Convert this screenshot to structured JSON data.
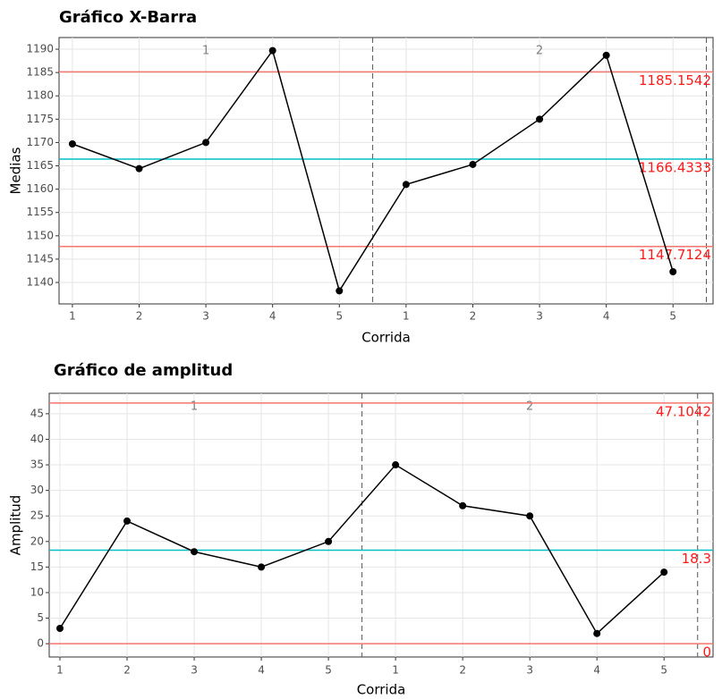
{
  "chart_data": [
    {
      "type": "line",
      "title": "Gráfico X-Barra",
      "x_label": "Corrida",
      "y_label": "Medias",
      "categories": [
        "1",
        "2",
        "3",
        "4",
        "5",
        "1",
        "2",
        "3",
        "4",
        "5"
      ],
      "phases": [
        "1",
        "2"
      ],
      "series": [
        {
          "name": "Medias",
          "color": "#000000",
          "values": [
            1169.7,
            1164.4,
            1170,
            1189.7,
            1138.2,
            1161,
            1165.3,
            1175,
            1188.7,
            1142.3
          ]
        }
      ],
      "limits": [
        {
          "value": 1185.1542,
          "color": "#f8766d"
        },
        {
          "value": 1166.4333,
          "color": "#00bfc4"
        },
        {
          "value": 1147.7124,
          "color": "#f8766d"
        }
      ],
      "ylim": [
        1135.4,
        1192.5
      ],
      "yticks": [
        1140,
        1145,
        1150,
        1155,
        1160,
        1165,
        1170,
        1175,
        1180,
        1185,
        1190
      ],
      "grid": true
    },
    {
      "type": "line",
      "title": "Gráfico de amplitud",
      "x_label": "Corrida",
      "y_label": "Amplitud",
      "categories": [
        "1",
        "2",
        "3",
        "4",
        "5",
        "1",
        "2",
        "3",
        "4",
        "5"
      ],
      "phases": [
        "1",
        "2"
      ],
      "series": [
        {
          "name": "Amplitud",
          "color": "#000000",
          "values": [
            3,
            24,
            18,
            15,
            20,
            35,
            27,
            25,
            2,
            14
          ]
        }
      ],
      "limits": [
        {
          "value": 47.1042,
          "color": "#f8766d"
        },
        {
          "value": 18.3,
          "color": "#00bfc4"
        },
        {
          "value": 0,
          "color": "#f8766d"
        }
      ],
      "ylim": [
        -2.6,
        49
      ],
      "yticks": [
        0,
        5,
        10,
        15,
        20,
        25,
        30,
        35,
        40,
        45
      ],
      "grid": true
    }
  ]
}
